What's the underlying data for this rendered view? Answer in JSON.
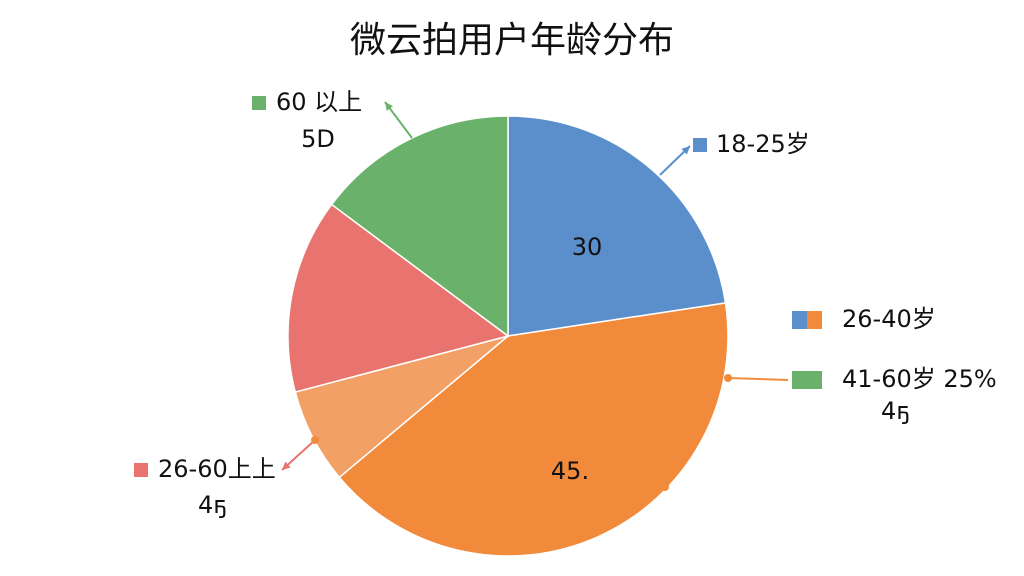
{
  "chart_data": {
    "type": "pie",
    "title": "微云拍用户年龄分布",
    "categories": [
      "18-25岁",
      "26-40岁",
      null,
      "26-60上上",
      "60 以上"
    ],
    "values": [
      22.6,
      41.3,
      7,
      14.3,
      14.8
    ],
    "colors": [
      "#5b8fcb",
      "#f28a3c",
      "#f3a066",
      "#e8736f",
      "#6ab26c"
    ],
    "extra_legend": [
      {
        "label": "41-60岁 25%",
        "color": "#6ab26c"
      }
    ],
    "annotations": [
      "30",
      "45.",
      "5D",
      "4ҕ",
      "4ҕ"
    ]
  }
}
